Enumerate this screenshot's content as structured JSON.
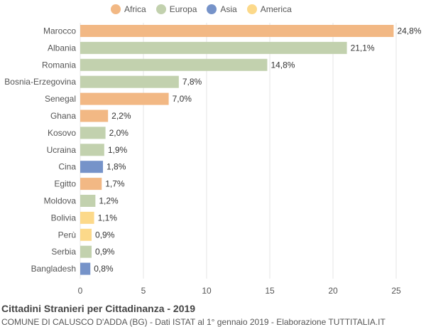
{
  "chart_data": {
    "type": "bar",
    "orientation": "horizontal",
    "title": "Cittadini Stranieri per Cittadinanza - 2019",
    "subtitle": "COMUNE DI CALUSCO D'ADDA (BG) - Dati ISTAT al 1° gennaio 2019 - Elaborazione TUTTITALIA.IT",
    "xlim": [
      0,
      25
    ],
    "xticks": [
      0,
      5,
      10,
      15,
      20,
      25
    ],
    "grid": true,
    "legend_position": "top",
    "legend": [
      {
        "name": "Africa",
        "color": "#f2b884"
      },
      {
        "name": "Europa",
        "color": "#c2d1ae"
      },
      {
        "name": "Asia",
        "color": "#7693c9"
      },
      {
        "name": "America",
        "color": "#fcd98a"
      }
    ],
    "categories": [
      "Marocco",
      "Albania",
      "Romania",
      "Bosnia-Erzegovina",
      "Senegal",
      "Ghana",
      "Kosovo",
      "Ucraina",
      "Cina",
      "Egitto",
      "Moldova",
      "Bolivia",
      "Perù",
      "Serbia",
      "Bangladesh"
    ],
    "values": [
      24.8,
      21.1,
      14.8,
      7.8,
      7.0,
      2.2,
      2.0,
      1.9,
      1.8,
      1.7,
      1.2,
      1.1,
      0.9,
      0.9,
      0.8
    ],
    "value_labels": [
      "24,8%",
      "21,1%",
      "14,8%",
      "7,8%",
      "7,0%",
      "2,2%",
      "2,0%",
      "1,9%",
      "1,8%",
      "1,7%",
      "1,2%",
      "1,1%",
      "0,9%",
      "0,9%",
      "0,8%"
    ],
    "groups": [
      "Africa",
      "Europa",
      "Europa",
      "Europa",
      "Africa",
      "Africa",
      "Europa",
      "Europa",
      "Asia",
      "Africa",
      "Europa",
      "America",
      "America",
      "Europa",
      "Asia"
    ]
  }
}
